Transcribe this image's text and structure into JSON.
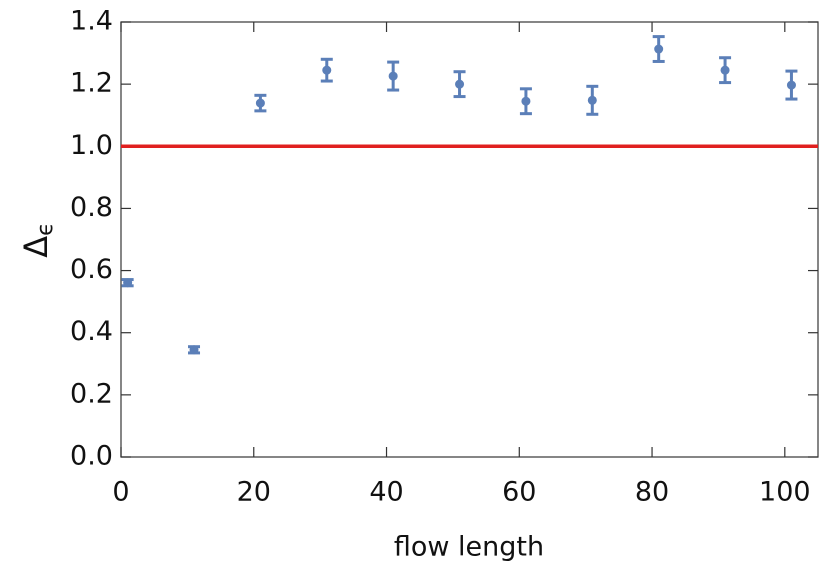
{
  "chart_data": {
    "type": "scatter",
    "xlabel": "flow length",
    "ylabel": "Δ",
    "ylabel_subscript": "ϵ",
    "x": [
      1,
      11,
      21,
      31,
      41,
      51,
      61,
      71,
      81,
      91,
      101
    ],
    "series": [
      {
        "color": "#5b7fb8",
        "values": [
          0.561,
          0.345,
          1.139,
          1.245,
          1.226,
          1.2,
          1.145,
          1.148,
          1.313,
          1.245,
          1.197
        ],
        "errors": [
          0.01,
          0.01,
          0.025,
          0.035,
          0.045,
          0.04,
          0.04,
          0.045,
          0.04,
          0.04,
          0.045
        ]
      }
    ],
    "reference_line": {
      "value": 1.0,
      "color": "#e0201f"
    },
    "xlim": [
      0,
      105
    ],
    "ylim": [
      0,
      1.4
    ],
    "xticks": [
      0,
      20,
      40,
      60,
      80,
      100
    ],
    "yticks": [
      {
        "value": 0,
        "label": "0.0"
      },
      0.2,
      0.4,
      0.6,
      0.8,
      {
        "value": 1,
        "label": "1.0"
      },
      1.2,
      1.4
    ]
  }
}
